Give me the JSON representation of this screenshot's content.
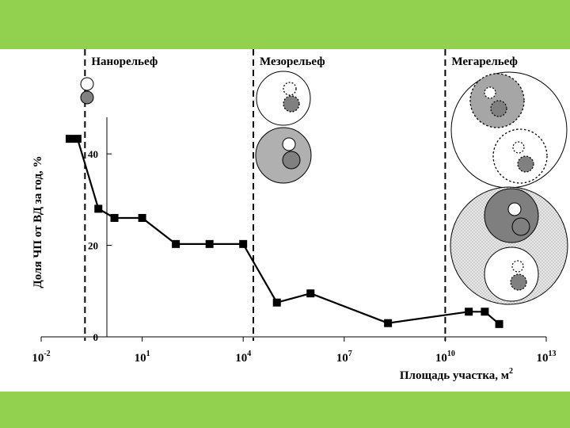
{
  "chart_data": {
    "type": "line",
    "xlabel": "Площадь участка, м",
    "xlabel_superscript": "2",
    "ylabel": "Доля ЧП от ВД за год, %",
    "x_scale": "log10",
    "xlim": [
      0.01,
      10000000000000
    ],
    "ylim": [
      0,
      48
    ],
    "y_ticks": [
      {
        "value": 0,
        "label": "0"
      },
      {
        "value": 20,
        "label": "20"
      },
      {
        "value": 40,
        "label": "40"
      }
    ],
    "x_ticks": [
      {
        "value": 0.01,
        "base": "10",
        "exp": "-2"
      },
      {
        "value": 10,
        "base": "10",
        "exp": "1"
      },
      {
        "value": 10000,
        "base": "10",
        "exp": "4"
      },
      {
        "value": 10000000,
        "base": "10",
        "exp": "7"
      },
      {
        "value": 10000000000,
        "base": "10",
        "exp": "10"
      },
      {
        "value": 10000000000000,
        "base": "10",
        "exp": "13"
      }
    ],
    "series": [
      {
        "marker": "square",
        "color": "#000000",
        "x": [
          0.07,
          0.12,
          0.5,
          1.5,
          10,
          100,
          1000,
          10000,
          100000,
          1000000,
          200000000,
          50000000000,
          150000000000,
          400000000000
        ],
        "y": [
          43.3,
          43.3,
          28,
          26,
          26,
          20.3,
          20.3,
          20.3,
          7.5,
          9.5,
          3,
          5.5,
          5.5,
          2.8
        ]
      }
    ],
    "regions": [
      {
        "label": "Нанорельеф",
        "boundary_x": 0.2
      },
      {
        "label": "Мезорельеф",
        "boundary_x": 20000
      },
      {
        "label": "Мегарельеф",
        "boundary_x": 10000000000
      }
    ],
    "grid": false,
    "legend": "none"
  },
  "colors": {
    "band": "#92d050",
    "line": "#000000",
    "light_fill": "#d9d9d9",
    "medium_fill": "#a6a6a6",
    "dark_fill": "#7f7f7f"
  }
}
